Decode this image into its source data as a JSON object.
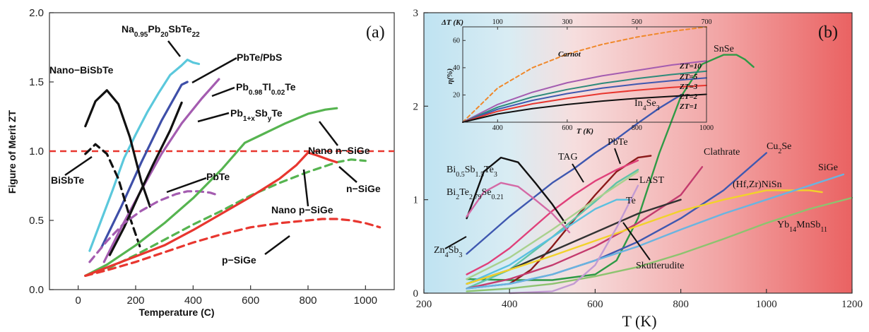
{
  "chart_data": [
    {
      "type": "line",
      "panel_label": "(a)",
      "xlabel": "Temperature (C)",
      "ylabel": "Figure of Merit ZT",
      "xlim": [
        -100,
        1100
      ],
      "ylim": [
        0,
        2.0
      ],
      "xticks": [
        "0",
        "200",
        "400",
        "600",
        "800",
        "1000"
      ],
      "yticks": [
        "0.0",
        "0.5",
        "1.0",
        "1.5",
        "2.0"
      ],
      "reference_line": {
        "y": 1.0,
        "style": "dashed",
        "color": "#e8362f"
      },
      "series": [
        {
          "name": "Na0.95Pb20SbTe22",
          "color": "#5bc8dc",
          "dash": false,
          "x": [
            40,
            80,
            120,
            160,
            200,
            240,
            280,
            320,
            360,
            380,
            400,
            420
          ],
          "y": [
            0.28,
            0.5,
            0.72,
            0.95,
            1.12,
            1.28,
            1.42,
            1.55,
            1.62,
            1.66,
            1.64,
            1.63
          ]
        },
        {
          "name": "PbTe/PbS",
          "color": "#3e4fa8",
          "dash": false,
          "x": [
            80,
            150,
            220,
            290,
            360,
            380
          ],
          "y": [
            0.3,
            0.6,
            0.92,
            1.22,
            1.48,
            1.5
          ]
        },
        {
          "name": "Pb0.98Tl0.02Te",
          "color": "#a45cb0",
          "dash": false,
          "x": [
            90,
            150,
            220,
            290,
            360,
            430,
            490
          ],
          "y": [
            0.2,
            0.45,
            0.72,
            0.98,
            1.2,
            1.38,
            1.52
          ]
        },
        {
          "name": "Pb1+xSbyTe",
          "color": "#111111",
          "dash": false,
          "x": [
            110,
            160,
            210,
            260,
            320,
            360
          ],
          "y": [
            0.25,
            0.45,
            0.68,
            0.9,
            1.15,
            1.35
          ]
        },
        {
          "name": "Nano-BiSbTe",
          "color": "#111111",
          "dash": false,
          "x": [
            25,
            60,
            100,
            140,
            180,
            220,
            250
          ],
          "y": [
            1.18,
            1.36,
            1.44,
            1.34,
            1.1,
            0.78,
            0.6
          ]
        },
        {
          "name": "BiSbTe",
          "color": "#111111",
          "dash": true,
          "x": [
            25,
            60,
            100,
            140,
            180,
            220
          ],
          "y": [
            0.98,
            1.05,
            0.98,
            0.8,
            0.52,
            0.28
          ]
        },
        {
          "name": "PbTe",
          "color": "#a45cb0",
          "dash": true,
          "x": [
            40,
            100,
            160,
            220,
            280,
            340,
            380,
            420,
            460,
            490
          ],
          "y": [
            0.2,
            0.35,
            0.48,
            0.57,
            0.64,
            0.69,
            0.71,
            0.71,
            0.7,
            0.68
          ]
        },
        {
          "name": "Nano n-SiGe",
          "color": "#56b450",
          "dash": false,
          "x": [
            25,
            100,
            200,
            300,
            400,
            500,
            580,
            650,
            720,
            800,
            860,
            900
          ],
          "y": [
            0.1,
            0.18,
            0.32,
            0.48,
            0.66,
            0.87,
            1.06,
            1.13,
            1.2,
            1.27,
            1.3,
            1.31
          ]
        },
        {
          "name": "n-SiGe",
          "color": "#56b450",
          "dash": true,
          "x": [
            25,
            100,
            200,
            300,
            400,
            500,
            600,
            700,
            800,
            900,
            950,
            1000
          ],
          "y": [
            0.1,
            0.15,
            0.25,
            0.36,
            0.47,
            0.57,
            0.68,
            0.77,
            0.85,
            0.92,
            0.94,
            0.93
          ]
        },
        {
          "name": "Nano p-SiGe",
          "color": "#e8362f",
          "dash": false,
          "x": [
            25,
            100,
            200,
            300,
            400,
            500,
            600,
            700,
            760,
            800,
            830,
            870,
            900
          ],
          "y": [
            0.1,
            0.16,
            0.24,
            0.32,
            0.43,
            0.55,
            0.67,
            0.8,
            0.9,
            0.99,
            0.97,
            0.94,
            0.92
          ]
        },
        {
          "name": "p-SiGe",
          "color": "#e8362f",
          "dash": true,
          "x": [
            25,
            100,
            200,
            300,
            400,
            500,
            600,
            700,
            800,
            850,
            900,
            950,
            1000,
            1050
          ],
          "y": [
            0.1,
            0.14,
            0.2,
            0.27,
            0.34,
            0.4,
            0.45,
            0.48,
            0.5,
            0.51,
            0.51,
            0.5,
            0.48,
            0.45
          ]
        }
      ],
      "labels": [
        {
          "text": "Na0.95Pb20SbTe22"
        },
        {
          "text": "PbTe/PbS"
        },
        {
          "text": "Pb0.98Tl0.02Te"
        },
        {
          "text": "Pb1+xSbyTe"
        },
        {
          "text": "Nano−BiSbTe"
        },
        {
          "text": "BiSbTe"
        },
        {
          "text": "PbTe"
        },
        {
          "text": "Nano n−SiGe"
        },
        {
          "text": "n−SiGe"
        },
        {
          "text": "Nano p−SiGe"
        },
        {
          "text": "p−SiGe"
        }
      ]
    },
    {
      "type": "line",
      "panel_label": "(b)",
      "xlabel": "T (K)",
      "ylabel": "",
      "xlim": [
        200,
        1200
      ],
      "ylim": [
        0,
        3
      ],
      "xticks": [
        "200",
        "400",
        "600",
        "800",
        "1000",
        "1200"
      ],
      "yticks": [
        "0",
        "1",
        "2",
        "3"
      ],
      "background": "gradient light-blue (left) to red (right)",
      "series": [
        {
          "name": "SnSe",
          "color": "#2e9a45",
          "x": [
            300,
            400,
            500,
            600,
            650,
            700,
            750,
            800,
            850,
            900,
            930,
            950,
            970
          ],
          "y": [
            0.15,
            0.14,
            0.14,
            0.2,
            0.35,
            0.8,
            1.5,
            2.1,
            2.45,
            2.55,
            2.55,
            2.5,
            2.42
          ]
        },
        {
          "name": "In4Se3",
          "color": "#3f58b0",
          "x": [
            300,
            350,
            400,
            450,
            500,
            550,
            600,
            650,
            700,
            750,
            800
          ],
          "y": [
            0.42,
            0.62,
            0.82,
            1.0,
            1.18,
            1.33,
            1.5,
            1.65,
            1.82,
            1.98,
            2.12
          ]
        },
        {
          "name": "PbTe",
          "color": "#8b1a1a",
          "x": [
            400,
            450,
            500,
            550,
            600,
            650,
            700,
            730
          ],
          "y": [
            0.1,
            0.25,
            0.5,
            0.78,
            1.05,
            1.3,
            1.45,
            1.47
          ]
        },
        {
          "name": "TAG",
          "color": "#e0407a",
          "x": [
            300,
            350,
            400,
            450,
            500,
            550,
            600,
            650,
            700
          ],
          "y": [
            0.2,
            0.32,
            0.48,
            0.68,
            0.88,
            1.05,
            1.2,
            1.32,
            1.42
          ]
        },
        {
          "name": "LAST",
          "color": "#5fc4a8",
          "x": [
            300,
            400,
            500,
            600,
            650,
            700
          ],
          "y": [
            0.05,
            0.25,
            0.6,
            0.98,
            1.18,
            1.32
          ]
        },
        {
          "name": "Te",
          "color": "#5ac0e0",
          "x": [
            300,
            400,
            500,
            600,
            650,
            680
          ],
          "y": [
            0.1,
            0.3,
            0.6,
            0.9,
            1.0,
            1.0
          ]
        },
        {
          "name": "Bi0.5Sb1.5Te3",
          "color": "#111111",
          "x": [
            300,
            340,
            380,
            420,
            460,
            500,
            530
          ],
          "y": [
            0.8,
            1.3,
            1.45,
            1.4,
            1.18,
            0.95,
            0.75
          ]
        },
        {
          "name": "Bi2Te2.79Se0.21",
          "color": "#d46aa6",
          "x": [
            300,
            340,
            380,
            420,
            460,
            500,
            540
          ],
          "y": [
            0.82,
            1.08,
            1.18,
            1.14,
            1.0,
            0.85,
            0.65
          ]
        },
        {
          "name": "Zn4Sb3",
          "color": "#a9d18e",
          "x": [
            300,
            400,
            500,
            600,
            700
          ],
          "y": [
            0.15,
            0.38,
            0.68,
            1.0,
            1.3
          ]
        },
        {
          "name": "Clathrate",
          "color": "#c43b6e",
          "x": [
            300,
            400,
            500,
            600,
            700,
            800,
            850
          ],
          "y": [
            0.05,
            0.15,
            0.3,
            0.5,
            0.75,
            1.05,
            1.35
          ]
        },
        {
          "name": "Cu2Se",
          "color": "#3f58b0",
          "x": [
            300,
            400,
            500,
            600,
            700,
            800,
            900,
            1000
          ],
          "y": [
            0.05,
            0.1,
            0.2,
            0.35,
            0.55,
            0.8,
            1.1,
            1.5
          ]
        },
        {
          "name": "Skutterudite",
          "color": "#333333",
          "x": [
            300,
            400,
            500,
            600,
            700,
            800
          ],
          "y": [
            0.1,
            0.25,
            0.45,
            0.65,
            0.85,
            1.0
          ]
        },
        {
          "name": "(Hf,Zr)NiSn",
          "color": "#f2d22a",
          "x": [
            300,
            400,
            500,
            600,
            700,
            800,
            900,
            1000,
            1100,
            1130
          ],
          "y": [
            0.1,
            0.25,
            0.4,
            0.56,
            0.72,
            0.88,
            1.0,
            1.1,
            1.1,
            1.08
          ]
        },
        {
          "name": "SiGe",
          "color": "#6ab4e0",
          "x": [
            300,
            400,
            500,
            600,
            700,
            800,
            900,
            1000,
            1100,
            1180
          ],
          "y": [
            0.05,
            0.1,
            0.2,
            0.35,
            0.5,
            0.68,
            0.85,
            1.0,
            1.15,
            1.27
          ]
        },
        {
          "name": "Yb14MnSb11",
          "color": "#8dc36f",
          "x": [
            300,
            400,
            500,
            600,
            700,
            800,
            900,
            1000,
            1100,
            1200
          ],
          "y": [
            0.02,
            0.05,
            0.1,
            0.18,
            0.28,
            0.42,
            0.58,
            0.75,
            0.9,
            1.02
          ]
        },
        {
          "name": "",
          "color": "#c39bd3",
          "x": [
            400,
            500,
            550,
            600,
            650,
            700
          ],
          "y": [
            0.0,
            0.02,
            0.1,
            0.3,
            0.7,
            1.15
          ]
        }
      ],
      "labels": [
        {
          "text": "SnSe"
        },
        {
          "text": "In4Se3"
        },
        {
          "text": "PbTe"
        },
        {
          "text": "TAG"
        },
        {
          "text": "LAST"
        },
        {
          "text": "Te"
        },
        {
          "text": "Bi0.5Sb1.5Te3"
        },
        {
          "text": "Bi2Te2.79Se0.21"
        },
        {
          "text": "Zn4Sb3"
        },
        {
          "text": "Clathrate"
        },
        {
          "text": "Cu2Se"
        },
        {
          "text": "Skutterudite"
        },
        {
          "text": "(Hf,Zr)NiSn"
        },
        {
          "text": "SiGe"
        },
        {
          "text": "Yb14MnSb11"
        }
      ],
      "inset": {
        "xlabel": "T (K)",
        "ylabel": "η(%)",
        "top_axis_label": "ΔT (K)",
        "xlim": [
          300,
          1000
        ],
        "ylim": [
          0,
          70
        ],
        "xticks": [
          "400",
          "600",
          "800",
          "1000"
        ],
        "yticks": [
          "20",
          "40",
          "60"
        ],
        "top_ticks": [
          "100",
          "300",
          "500",
          "700"
        ],
        "series": [
          {
            "name": "Carnot",
            "color": "#f0882a",
            "dash": true,
            "x": [
              300,
              400,
              500,
              600,
              700,
              800,
              900,
              1000
            ],
            "y": [
              0,
              25,
              40,
              50,
              57.1,
              62.5,
              66.7,
              70
            ]
          },
          {
            "name": "ZT=10",
            "color": "#a45cb0",
            "dash": false,
            "x": [
              300,
              400,
              500,
              600,
              700,
              800,
              900,
              1000
            ],
            "y": [
              0,
              13,
              22,
              29,
              34,
              38,
              42,
              45
            ]
          },
          {
            "name": "ZT=5",
            "color": "#2d8a7a",
            "dash": false,
            "x": [
              300,
              400,
              500,
              600,
              700,
              800,
              900,
              1000
            ],
            "y": [
              0,
              11,
              18.5,
              24,
              28.5,
              32,
              35,
              37.5
            ]
          },
          {
            "name": "ZT=3",
            "color": "#3f58b0",
            "dash": false,
            "x": [
              300,
              400,
              500,
              600,
              700,
              800,
              900,
              1000
            ],
            "y": [
              0,
              9.5,
              16,
              21,
              25,
              28,
              30.5,
              32.5
            ]
          },
          {
            "name": "ZT=2",
            "color": "#e8362f",
            "dash": false,
            "x": [
              300,
              400,
              500,
              600,
              700,
              800,
              900,
              1000
            ],
            "y": [
              0,
              8,
              13.5,
              17.5,
              21,
              23.5,
              25.5,
              27
            ]
          },
          {
            "name": "ZT=1",
            "color": "#111111",
            "dash": false,
            "x": [
              300,
              400,
              500,
              600,
              700,
              800,
              900,
              1000
            ],
            "y": [
              0,
              6,
              10,
              13,
              15.5,
              17.5,
              19,
              20.5
            ]
          }
        ]
      }
    }
  ]
}
